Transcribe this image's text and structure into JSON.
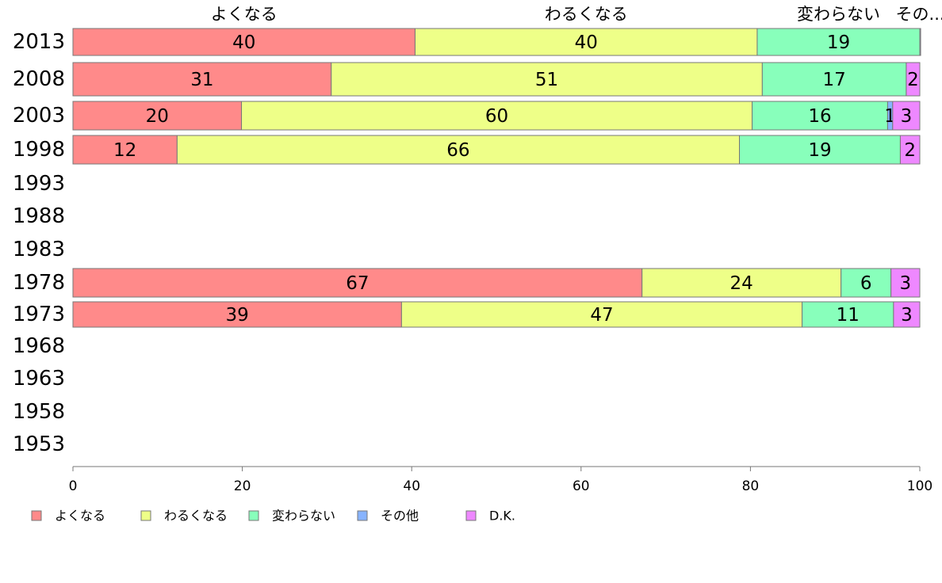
{
  "chart_data": {
    "type": "bar",
    "orientation": "horizontal",
    "stacked": true,
    "categories": [
      "2013",
      "2008",
      "2003",
      "1998",
      "1993",
      "1988",
      "1983",
      "1978",
      "1973",
      "1968",
      "1963",
      "1958",
      "1953"
    ],
    "series": [
      {
        "name": "よくなる",
        "color": "#ff8a8a",
        "values": [
          40.4,
          30.5,
          19.9,
          12.3,
          null,
          null,
          null,
          67.2,
          38.8,
          null,
          null,
          null,
          null
        ],
        "labels": [
          "40",
          "31",
          "20",
          "12",
          "",
          "",
          "",
          "67",
          "39",
          "",
          "",
          "",
          ""
        ]
      },
      {
        "name": "わるくなる",
        "color": "#eeff88",
        "values": [
          40.4,
          50.9,
          60.3,
          66.4,
          null,
          null,
          null,
          23.5,
          47.3,
          null,
          null,
          null,
          null
        ],
        "labels": [
          "40",
          "51",
          "60",
          "66",
          "",
          "",
          "",
          "24",
          "47",
          "",
          "",
          "",
          ""
        ]
      },
      {
        "name": "変わらない",
        "color": "#88ffbb",
        "values": [
          19.2,
          17.0,
          16.0,
          19.0,
          null,
          null,
          null,
          5.9,
          10.8,
          null,
          null,
          null,
          null
        ],
        "labels": [
          "19",
          "17",
          "16",
          "19",
          "",
          "",
          "",
          "6",
          "11",
          "",
          "",
          "",
          ""
        ]
      },
      {
        "name": "その他",
        "color": "#88b4ff",
        "values": [
          0.1,
          0.0,
          0.6,
          0.0,
          null,
          null,
          null,
          0.0,
          0.0,
          null,
          null,
          null,
          null
        ],
        "labels": [
          "",
          "",
          "1",
          "",
          "",
          "",
          "",
          "",
          "",
          "",
          "",
          "",
          ""
        ]
      },
      {
        "name": "D.K.",
        "color": "#ee88ff",
        "values": [
          0.0,
          1.6,
          3.2,
          2.3,
          null,
          null,
          null,
          3.4,
          3.1,
          null,
          null,
          null,
          null
        ],
        "labels": [
          "",
          "2",
          "3",
          "2",
          "",
          "",
          "",
          "3",
          "3",
          "",
          "",
          "",
          ""
        ]
      }
    ],
    "top_labels": [
      "よくなる",
      "わるくなる",
      "変わらない",
      "その..."
    ],
    "xlim": [
      0,
      100
    ],
    "xticks": [
      "0",
      "20",
      "40",
      "60",
      "80",
      "100"
    ],
    "legend": [
      "よくなる",
      "わるくなる",
      "変わらない",
      "その他",
      "D.K."
    ],
    "legend_position": "bottom-left",
    "grid": false
  }
}
